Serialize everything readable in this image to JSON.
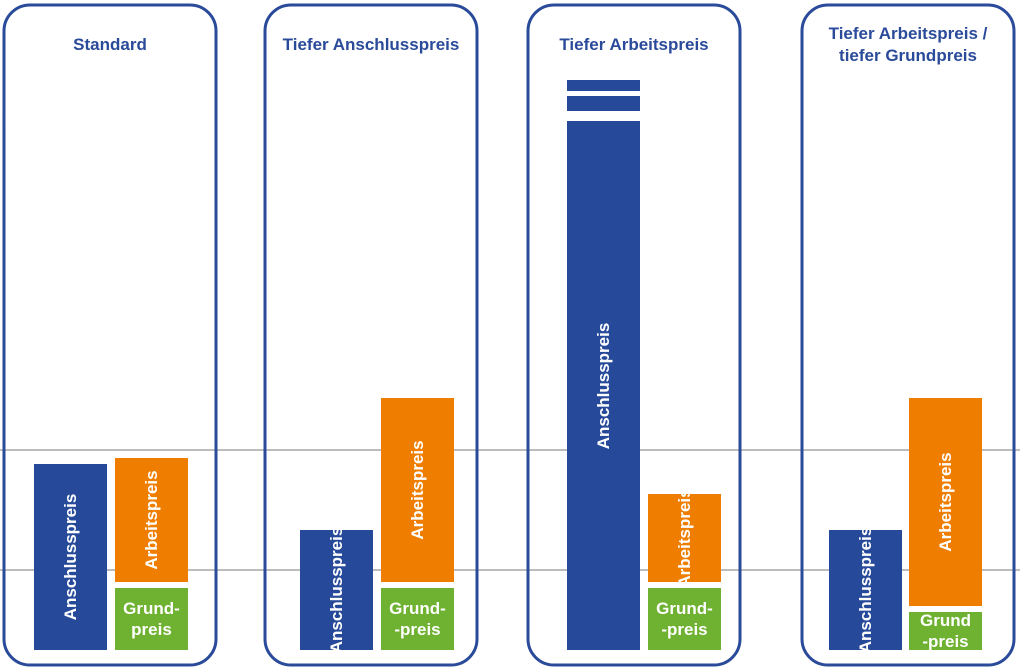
{
  "colors": {
    "anschluss": "#264a99",
    "arbeit": "#ee7d00",
    "grund": "#6fb130",
    "frame": "#2a4a9a",
    "gridline": "#7a7a7a"
  },
  "chart_data": {
    "type": "bar",
    "stacked": true,
    "grid": false,
    "y_reference_lines": [
      4,
      10
    ],
    "ylim": [
      0,
      11.3
    ],
    "panels": [
      {
        "title": [
          "Standard"
        ],
        "bars": [
          {
            "segments": [
              {
                "label": "Anschlusspreis",
                "key": "anschluss",
                "value": 9.3,
                "orientation": "vertical"
              }
            ]
          },
          {
            "segments": [
              {
                "label": [
                  "Grund-",
                  "preis"
                ],
                "key": "grund",
                "value": 3.1,
                "orientation": "horizontal"
              },
              {
                "label": "Arbeitspreis",
                "key": "arbeit",
                "value": 6.2,
                "orientation": "vertical"
              }
            ]
          }
        ]
      },
      {
        "title": [
          "Tiefer Anschlusspreis"
        ],
        "bars": [
          {
            "segments": [
              {
                "label": "Anschlusspreis",
                "key": "anschluss",
                "value": 6.0,
                "orientation": "vertical"
              }
            ]
          },
          {
            "segments": [
              {
                "label": [
                  "Grund-",
                  "-preis"
                ],
                "key": "grund",
                "value": 3.1,
                "orientation": "horizontal"
              },
              {
                "label": "Arbeitspreis",
                "key": "arbeit",
                "value": 9.2,
                "orientation": "vertical"
              }
            ]
          }
        ]
      },
      {
        "title": [
          "Tiefer Arbeitspreis"
        ],
        "bars": [
          {
            "segments": [
              {
                "label": "Anschlusspreis",
                "key": "anschluss",
                "value": 15.5,
                "orientation": "vertical",
                "axis_break": true
              }
            ]
          },
          {
            "segments": [
              {
                "label": [
                  "Grund-",
                  "-preis"
                ],
                "key": "grund",
                "value": 3.1,
                "orientation": "horizontal"
              },
              {
                "label": "Arbeitspreis",
                "key": "arbeit",
                "value": 4.4,
                "orientation": "vertical"
              }
            ]
          }
        ]
      },
      {
        "title": [
          "Tiefer Arbeitspreis /",
          "tiefer Grundpreis"
        ],
        "bars": [
          {
            "segments": [
              {
                "label": "Anschlusspreis",
                "key": "anschluss",
                "value": 6.0,
                "orientation": "vertical"
              }
            ]
          },
          {
            "segments": [
              {
                "label": [
                  "Grund",
                  "-preis"
                ],
                "key": "grund",
                "value": 1.9,
                "orientation": "horizontal"
              },
              {
                "label": "Arbeitspreis",
                "key": "arbeit",
                "value": 10.4,
                "orientation": "vertical"
              }
            ]
          }
        ]
      }
    ]
  }
}
